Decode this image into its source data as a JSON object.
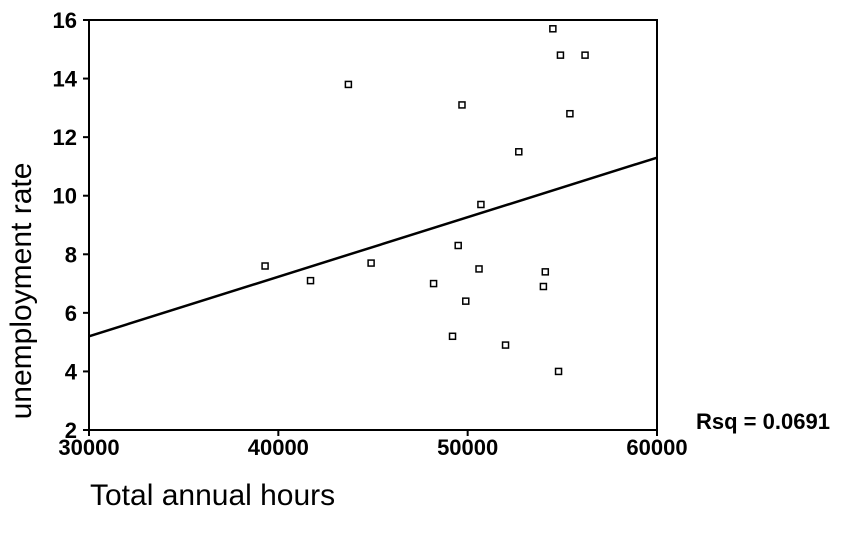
{
  "chart_data": {
    "type": "scatter",
    "title": "",
    "xlabel": "Total annual hours",
    "ylabel": "unemployment rate",
    "xlim": [
      30000,
      60000
    ],
    "ylim": [
      2,
      16
    ],
    "x_ticks": [
      "30000",
      "40000",
      "50000",
      "60000"
    ],
    "y_ticks": [
      "2",
      "4",
      "6",
      "8",
      "10",
      "12",
      "14",
      "16"
    ],
    "grid": false,
    "points": [
      {
        "x": 39300,
        "y": 7.6
      },
      {
        "x": 41700,
        "y": 7.1
      },
      {
        "x": 43700,
        "y": 13.8
      },
      {
        "x": 44900,
        "y": 7.7
      },
      {
        "x": 48200,
        "y": 7.0
      },
      {
        "x": 49200,
        "y": 5.2
      },
      {
        "x": 49500,
        "y": 8.3
      },
      {
        "x": 49700,
        "y": 13.1
      },
      {
        "x": 49900,
        "y": 6.4
      },
      {
        "x": 50600,
        "y": 7.5
      },
      {
        "x": 50700,
        "y": 9.7
      },
      {
        "x": 52000,
        "y": 4.9
      },
      {
        "x": 52700,
        "y": 11.5
      },
      {
        "x": 54000,
        "y": 6.9
      },
      {
        "x": 54100,
        "y": 7.4
      },
      {
        "x": 54500,
        "y": 15.7
      },
      {
        "x": 54800,
        "y": 4.0
      },
      {
        "x": 54900,
        "y": 14.8
      },
      {
        "x": 55400,
        "y": 12.8
      },
      {
        "x": 56200,
        "y": 14.8
      }
    ],
    "fit_line": {
      "x": [
        30000,
        60000
      ],
      "y": [
        5.2,
        11.3
      ]
    },
    "annotation": "Rsq = 0.0691",
    "marker_color": "#000000",
    "line_color": "#000000"
  }
}
